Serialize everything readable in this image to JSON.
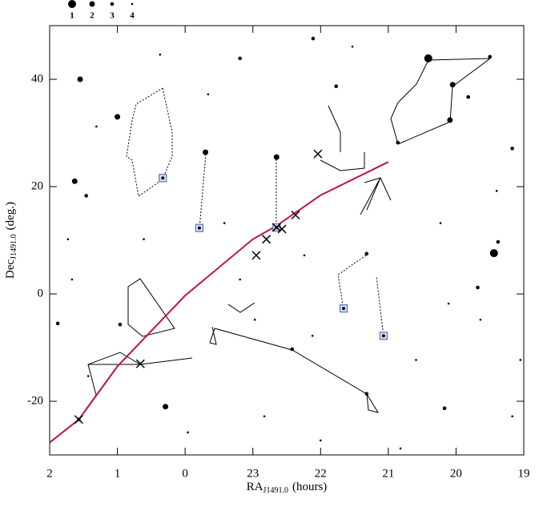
{
  "chart_data": {
    "type": "scatter",
    "x_label": {
      "main": "RA",
      "sub": "J1491.0",
      "unit": "(hours)"
    },
    "y_label": {
      "main": "Dec",
      "sub": "J1491.0",
      "unit": "(deg.)"
    },
    "xlim": [
      26,
      19
    ],
    "ylim": [
      -30,
      50
    ],
    "xticks": [
      {
        "value": 26,
        "label": "2"
      },
      {
        "value": 25,
        "label": "1"
      },
      {
        "value": 24,
        "label": "0"
      },
      23,
      22,
      21,
      20,
      19
    ],
    "yticks": [
      -20,
      0,
      20,
      40
    ],
    "size_legend": [
      1,
      2,
      3,
      4
    ],
    "stars": {
      "name": "stars",
      "color": "#000000",
      "x": [
        20.41,
        25.55,
        20.05,
        19.5,
        25.0,
        23.7,
        25.63,
        25.46,
        22.65,
        20.09,
        20.86,
        19.44,
        21.32,
        24.29,
        25.57,
        21.32,
        22.42,
        23.19,
        22.11,
        24.96,
        19.38,
        19.68,
        25.88,
        20.17,
        19.17,
        19.82,
        21.77,
        22.97,
        22.12,
        23.96,
        23.19,
        20.59,
        19.64,
        19.05,
        24.61,
        25.31,
        23.66,
        21.53,
        19.4,
        20.23,
        24.37,
        25.73,
        22.83,
        22.0,
        20.82,
        19.17,
        25.43,
        23.42,
        22.24,
        20.11,
        25.67
      ],
      "values": [
        43.9,
        40.0,
        39.0,
        44.2,
        33.0,
        26.4,
        21.0,
        18.3,
        25.5,
        32.4,
        28.2,
        7.6,
        7.5,
        -21.0,
        -23.4,
        -18.6,
        -10.3,
        43.9,
        47.6,
        -5.7,
        9.7,
        1.2,
        -5.5,
        -21.3,
        27.1,
        36.7,
        38.7,
        -4.8,
        -7.8,
        -25.8,
        2.7,
        -12.3,
        -4.8,
        -12.3,
        10.2,
        31.2,
        37.2,
        46.1,
        19.2,
        13.2,
        44.6,
        10.2,
        -22.8,
        -27.3,
        -28.8,
        -22.8,
        -15.3,
        13.2,
        7.2,
        -1.8,
        2.7
      ],
      "size": [
        1,
        2,
        2,
        3,
        2,
        2,
        2,
        3,
        2,
        2,
        3,
        1,
        3,
        2,
        3,
        3,
        3,
        3,
        3,
        3,
        3,
        3,
        3,
        3,
        3,
        3,
        3,
        4,
        4,
        4,
        4,
        4,
        4,
        4,
        4,
        4,
        4,
        4,
        4,
        4,
        4,
        4,
        4,
        4,
        4,
        4,
        4,
        4,
        4,
        4,
        4
      ]
    },
    "highlighted": {
      "name": "highlighted",
      "color": "#5a6fb0",
      "x": [
        24.33,
        23.79,
        22.65,
        21.66,
        21.07
      ],
      "values": [
        21.6,
        12.3,
        12.4,
        -2.7,
        -7.8
      ]
    },
    "crosses": {
      "name": "crosses",
      "color": "#000000",
      "x": [
        25.57,
        24.66,
        22.95,
        22.8,
        22.65,
        22.57,
        22.37,
        22.04
      ],
      "values": [
        -23.4,
        -13.0,
        7.2,
        10.2,
        12.4,
        12.1,
        14.7,
        26.1
      ]
    },
    "ecliptic": {
      "name": "ecliptic",
      "color": "#c0143c",
      "x": [
        26,
        25.57,
        25.0,
        24.0,
        23.0,
        22.65,
        22.0,
        21.0
      ],
      "values": [
        -27.7,
        -23.4,
        -13.5,
        -0.3,
        10.2,
        12.7,
        18.4,
        24.6
      ]
    }
  }
}
